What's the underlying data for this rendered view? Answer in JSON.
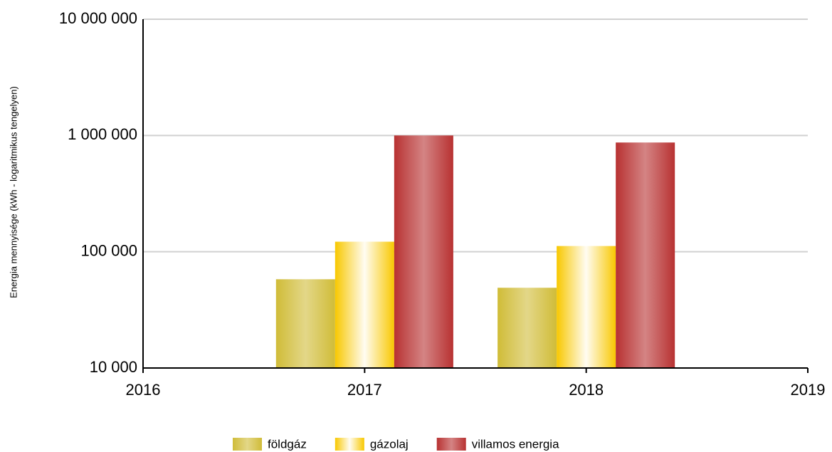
{
  "chart_data": {
    "type": "bar",
    "y_label": "Energia mennyisége (kWh - logaritmikus tengelyen)",
    "x": [
      2017,
      2018
    ],
    "series": [
      {
        "name": "földgáz",
        "color": "#d0bc38",
        "values": [
          58000,
          49000
        ]
      },
      {
        "name": "gázolaj",
        "color": "#f8c800",
        "values": [
          122000,
          112000
        ]
      },
      {
        "name": "villamos energia",
        "color": "#b83232",
        "values": [
          1000000,
          870000
        ]
      }
    ],
    "xlim": [
      2016,
      2019
    ],
    "xticks": [
      2016,
      2017,
      2018,
      2019
    ],
    "ylim": [
      10000,
      10000000
    ],
    "log_y": true,
    "yticks": [
      {
        "value": 10000,
        "label": "10 000"
      },
      {
        "value": 100000,
        "label": "100 000"
      },
      {
        "value": 1000000,
        "label": "1 000 000"
      },
      {
        "value": 10000000,
        "label": "10 000 000"
      }
    ],
    "grid": true,
    "legend": "bottom"
  }
}
